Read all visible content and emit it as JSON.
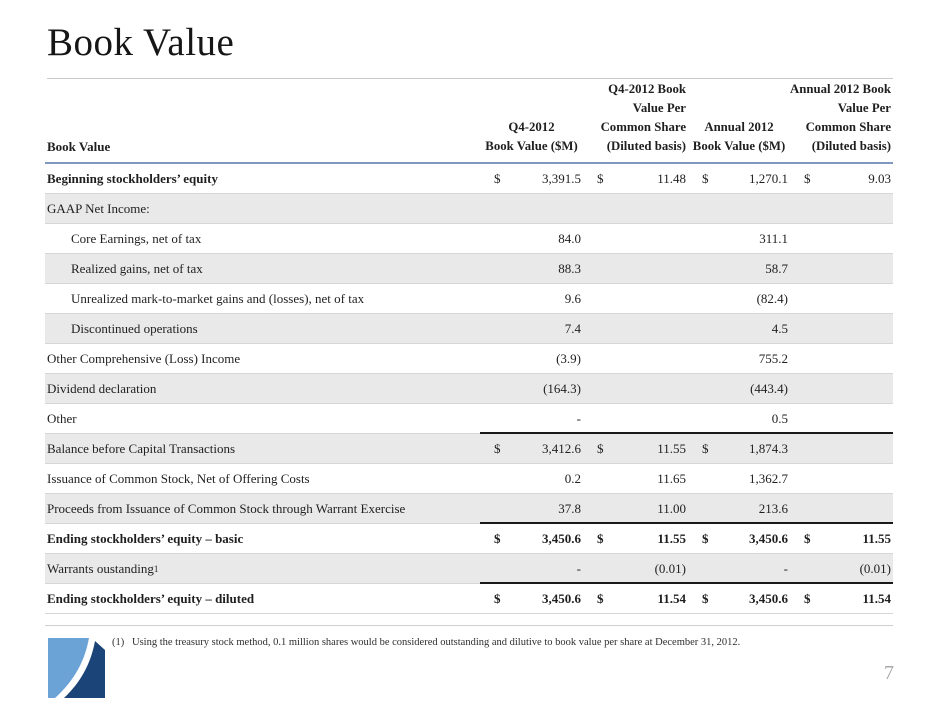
{
  "slide": {
    "title": "Book Value",
    "page_number": "7"
  },
  "table": {
    "left_header": "Book Value",
    "columns": [
      {
        "lines": [
          "Q4-2012",
          "Book Value ($M)"
        ]
      },
      {
        "lines": [
          "Q4-2012 Book",
          "Value Per",
          "Common Share",
          "(Diluted basis)"
        ]
      },
      {
        "lines": [
          "Annual 2012",
          "Book Value ($M)"
        ]
      },
      {
        "lines": [
          "Annual 2012 Book",
          "Value Per",
          "Common Share",
          "(Diluted basis)"
        ]
      }
    ],
    "rows": [
      {
        "label": "Beginning stockholders’ equity",
        "bold_label": true,
        "cells": [
          {
            "d": "$",
            "v": "3,391.5"
          },
          {
            "d": "$",
            "v": "11.48"
          },
          {
            "d": "$",
            "v": "1,270.1"
          },
          {
            "d": "$",
            "v": "9.03"
          }
        ]
      },
      {
        "label": "GAAP Net Income:",
        "shaded": true,
        "cells": [
          {},
          {},
          {},
          {}
        ]
      },
      {
        "label": "Core Earnings, net of tax",
        "indent": true,
        "cells": [
          {
            "v": "84.0"
          },
          {},
          {
            "v": "311.1"
          },
          {}
        ]
      },
      {
        "label": "Realized gains, net of tax",
        "indent": true,
        "shaded": true,
        "cells": [
          {
            "v": "88.3"
          },
          {},
          {
            "v": "58.7"
          },
          {}
        ]
      },
      {
        "label": "Unrealized mark-to-market gains and (losses), net of tax",
        "indent": true,
        "cells": [
          {
            "v": "9.6"
          },
          {},
          {
            "v": "(82.4)"
          },
          {}
        ]
      },
      {
        "label": "Discontinued operations",
        "indent": true,
        "shaded": true,
        "cells": [
          {
            "v": "7.4"
          },
          {},
          {
            "v": "4.5"
          },
          {}
        ]
      },
      {
        "label": "Other Comprehensive (Loss) Income",
        "cells": [
          {
            "v": "(3.9)"
          },
          {},
          {
            "v": "755.2"
          },
          {}
        ]
      },
      {
        "label": "Dividend declaration",
        "shaded": true,
        "cells": [
          {
            "v": "(164.3)"
          },
          {},
          {
            "v": "(443.4)"
          },
          {}
        ]
      },
      {
        "label": "Other",
        "rule_below": true,
        "cells": [
          {
            "v": "-"
          },
          {},
          {
            "v": "0.5"
          },
          {}
        ]
      },
      {
        "label": "Balance before Capital Transactions",
        "shaded": true,
        "cells": [
          {
            "d": "$",
            "v": "3,412.6"
          },
          {
            "d": "$",
            "v": "11.55"
          },
          {
            "d": "$",
            "v": "1,874.3"
          },
          {}
        ]
      },
      {
        "label": "Issuance of Common Stock, Net of Offering Costs",
        "cells": [
          {
            "v": "0.2"
          },
          {
            "v": "11.65"
          },
          {
            "v": "1,362.7"
          },
          {}
        ]
      },
      {
        "label": "Proceeds from Issuance of Common Stock through Warrant Exercise",
        "shaded": true,
        "rule_below": true,
        "cells": [
          {
            "v": "37.8"
          },
          {
            "v": "11.00"
          },
          {
            "v": "213.6"
          },
          {}
        ]
      },
      {
        "label": "Ending stockholders’ equity – basic",
        "bold_label": true,
        "bold_values": true,
        "cells": [
          {
            "d": "$",
            "v": "3,450.6"
          },
          {
            "d": "$",
            "v": "11.55"
          },
          {
            "d": "$",
            "v": "3,450.6"
          },
          {
            "d": "$",
            "v": "11.55"
          }
        ]
      },
      {
        "label": "Warrants oustanding",
        "sup": "1",
        "shaded": true,
        "rule_below": true,
        "cells": [
          {
            "v": "-"
          },
          {
            "v": "(0.01)"
          },
          {
            "v": "-"
          },
          {
            "v": "(0.01)"
          }
        ]
      },
      {
        "label": "Ending stockholders’ equity – diluted",
        "bold_label": true,
        "bold_values": true,
        "cells": [
          {
            "d": "$",
            "v": "3,450.6"
          },
          {
            "d": "$",
            "v": "11.54"
          },
          {
            "d": "$",
            "v": "3,450.6"
          },
          {
            "d": "$",
            "v": "11.54"
          }
        ]
      }
    ]
  },
  "footnote": {
    "marker": "(1)",
    "text": "Using the treasury stock method, 0.1 million shares would be considered outstanding and dilutive to book value per share at December 31, 2012."
  },
  "colors": {
    "header_rule_blue": "#8097c2",
    "stripe_gray": "#e9e9e9",
    "logo_light_blue": "#6ba3d6",
    "logo_navy": "#1b4478"
  }
}
